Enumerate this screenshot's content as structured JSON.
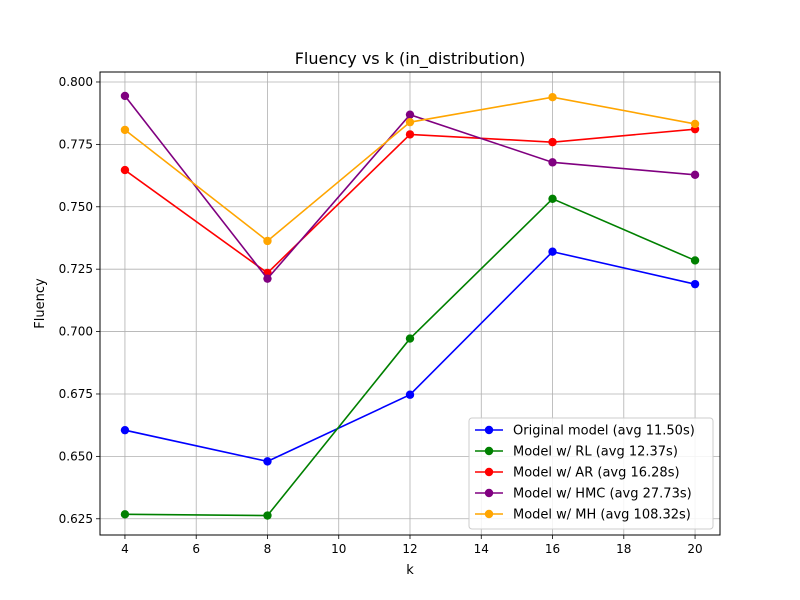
{
  "chart_data": {
    "type": "line",
    "title": "Fluency vs k (in_distribution)",
    "xlabel": "k",
    "ylabel": "Fluency",
    "xlim": [
      3.3,
      20.7
    ],
    "ylim": [
      0.6185,
      0.804
    ],
    "x_ticks": [
      4,
      6,
      8,
      10,
      12,
      14,
      16,
      18,
      20
    ],
    "y_ticks": [
      0.625,
      0.65,
      0.675,
      0.7,
      0.725,
      0.75,
      0.775,
      0.8
    ],
    "x_tick_labels": [
      "4",
      "6",
      "8",
      "10",
      "12",
      "14",
      "16",
      "18",
      "20"
    ],
    "y_tick_labels": [
      "0.625",
      "0.650",
      "0.675",
      "0.700",
      "0.725",
      "0.750",
      "0.775",
      "0.800"
    ],
    "grid": true,
    "legend_position": "lower-right",
    "x": [
      4,
      8,
      12,
      16,
      20
    ],
    "series": [
      {
        "name": "Original model (avg 11.50s)",
        "color": "#0000ff",
        "values": [
          0.6605,
          0.648,
          0.6747,
          0.732,
          0.719
        ]
      },
      {
        "name": "Model w/ RL (avg 12.37s)",
        "color": "#008000",
        "values": [
          0.6268,
          0.6263,
          0.6972,
          0.7532,
          0.7285
        ]
      },
      {
        "name": "Model w/ AR (avg 16.28s)",
        "color": "#ff0000",
        "values": [
          0.7647,
          0.7235,
          0.779,
          0.7759,
          0.7811
        ]
      },
      {
        "name": "Model w/ HMC (avg 27.73s)",
        "color": "#800080",
        "values": [
          0.7944,
          0.7212,
          0.7869,
          0.7678,
          0.7628
        ]
      },
      {
        "name": "Model w/ MH (avg 108.32s)",
        "color": "#ffa500",
        "values": [
          0.7808,
          0.7363,
          0.7839,
          0.7939,
          0.7832
        ]
      }
    ]
  }
}
